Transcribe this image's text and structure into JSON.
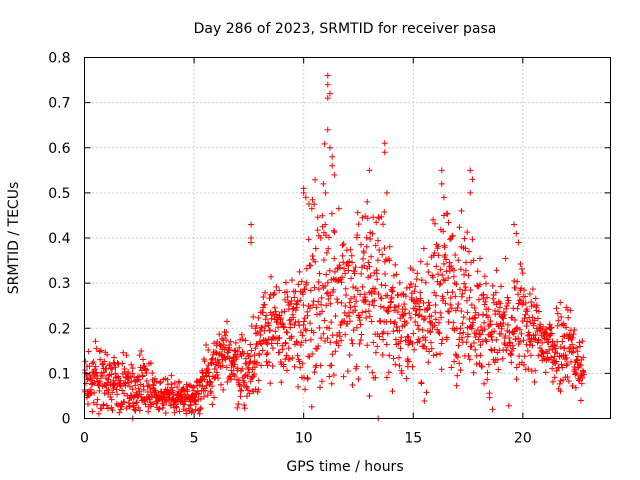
{
  "chart_data": {
    "type": "scatter",
    "title": "Day 286 of 2023, SRMTID for receiver pasa",
    "xlabel": "GPS time / hours",
    "ylabel": "SRMTID / TECUs",
    "xlim": [
      0,
      24
    ],
    "ylim": [
      0,
      0.8
    ],
    "grid": true,
    "marker": "plus",
    "color": "#ff0000",
    "x_ticks": [
      0,
      5,
      10,
      15,
      20
    ],
    "x_tick_labels": [
      "0",
      "5",
      "10",
      "15",
      "20"
    ],
    "y_ticks": [
      0,
      0.1,
      0.2,
      0.3,
      0.4,
      0.5,
      0.6,
      0.7,
      0.8
    ],
    "y_tick_labels": [
      "0",
      "0.1",
      "0.2",
      "0.3",
      "0.4",
      "0.5",
      "0.6",
      "0.7",
      "0.8"
    ],
    "envelope": {
      "description": "approximate median and spread of the dense point cloud, by hour",
      "hours": [
        0,
        1,
        2,
        3,
        4,
        5,
        5.5,
        6,
        6.5,
        7,
        7.5,
        8,
        8.5,
        9,
        9.5,
        10,
        10.5,
        11,
        11.5,
        12,
        12.5,
        13,
        13.5,
        14,
        14.5,
        15,
        15.5,
        16,
        16.5,
        17,
        17.5,
        18,
        18.5,
        19,
        19.5,
        20,
        20.5,
        21,
        21.5,
        22,
        22.5,
        22.8
      ],
      "median": [
        0.08,
        0.08,
        0.07,
        0.06,
        0.05,
        0.05,
        0.08,
        0.12,
        0.14,
        0.12,
        0.1,
        0.18,
        0.2,
        0.19,
        0.2,
        0.24,
        0.28,
        0.3,
        0.27,
        0.25,
        0.27,
        0.3,
        0.28,
        0.24,
        0.22,
        0.22,
        0.22,
        0.27,
        0.3,
        0.26,
        0.28,
        0.22,
        0.19,
        0.2,
        0.18,
        0.22,
        0.19,
        0.16,
        0.16,
        0.18,
        0.12,
        0.1
      ],
      "spread": [
        0.03,
        0.04,
        0.03,
        0.03,
        0.02,
        0.02,
        0.03,
        0.03,
        0.03,
        0.04,
        0.05,
        0.05,
        0.05,
        0.05,
        0.06,
        0.09,
        0.1,
        0.12,
        0.09,
        0.08,
        0.09,
        0.1,
        0.09,
        0.07,
        0.06,
        0.06,
        0.07,
        0.08,
        0.08,
        0.08,
        0.08,
        0.07,
        0.06,
        0.06,
        0.06,
        0.06,
        0.05,
        0.04,
        0.05,
        0.05,
        0.04,
        0.03
      ]
    },
    "notable_points": [
      {
        "x": 7.6,
        "y": 0.43
      },
      {
        "x": 7.6,
        "y": 0.39
      },
      {
        "x": 7.6,
        "y": 0.4
      },
      {
        "x": 10.0,
        "y": 0.51
      },
      {
        "x": 10.0,
        "y": 0.5
      },
      {
        "x": 10.1,
        "y": 0.49
      },
      {
        "x": 10.9,
        "y": 0.52
      },
      {
        "x": 11.0,
        "y": 0.5
      },
      {
        "x": 11.1,
        "y": 0.76
      },
      {
        "x": 11.1,
        "y": 0.74
      },
      {
        "x": 11.2,
        "y": 0.72
      },
      {
        "x": 11.1,
        "y": 0.71
      },
      {
        "x": 11.1,
        "y": 0.64
      },
      {
        "x": 11.2,
        "y": 0.6
      },
      {
        "x": 11.3,
        "y": 0.58
      },
      {
        "x": 11.3,
        "y": 0.56
      },
      {
        "x": 11.4,
        "y": 0.54
      },
      {
        "x": 12.9,
        "y": 0.48
      },
      {
        "x": 13.0,
        "y": 0.55
      },
      {
        "x": 13.0,
        "y": 0.05
      },
      {
        "x": 13.2,
        "y": 0.09
      },
      {
        "x": 13.7,
        "y": 0.61
      },
      {
        "x": 13.7,
        "y": 0.59
      },
      {
        "x": 13.8,
        "y": 0.5
      },
      {
        "x": 16.3,
        "y": 0.55
      },
      {
        "x": 16.3,
        "y": 0.52
      },
      {
        "x": 16.4,
        "y": 0.49
      },
      {
        "x": 16.4,
        "y": 0.45
      },
      {
        "x": 17.6,
        "y": 0.55
      },
      {
        "x": 17.7,
        "y": 0.53
      },
      {
        "x": 17.6,
        "y": 0.5
      },
      {
        "x": 17.2,
        "y": 0.46
      },
      {
        "x": 19.6,
        "y": 0.43
      },
      {
        "x": 19.7,
        "y": 0.41
      },
      {
        "x": 19.8,
        "y": 0.39
      },
      {
        "x": 2.2,
        "y": 0.0
      },
      {
        "x": 13.4,
        "y": 0.0
      }
    ]
  }
}
